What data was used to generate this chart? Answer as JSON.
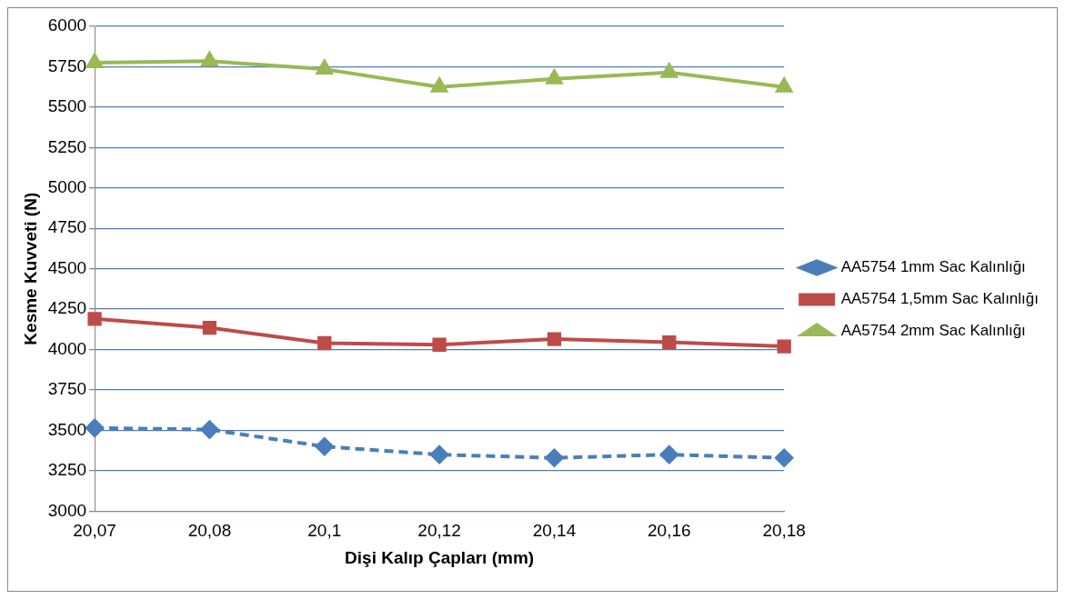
{
  "chart_data": {
    "type": "line",
    "xlabel": "Dişi Kalıp Çapları (mm)",
    "ylabel": "Kesme Kuvveti (N)",
    "categories": [
      "20,07",
      "20,08",
      "20,1",
      "20,12",
      "20,14",
      "20,16",
      "20,18"
    ],
    "ylim": [
      3000,
      6000
    ],
    "yticks": [
      3000,
      3250,
      3500,
      3750,
      4000,
      4250,
      4500,
      4750,
      5000,
      5250,
      5500,
      5750,
      6000
    ],
    "grid": "y",
    "legend": "right",
    "series": [
      {
        "name": "AA5754 1mm Sac Kalınlığı",
        "color": "#4a7ebb",
        "marker": "diamond",
        "line_style": "dashed",
        "values": [
          3515,
          3505,
          3400,
          3350,
          3330,
          3350,
          3330
        ]
      },
      {
        "name": "AA5754 1,5mm Sac Kalınlığı",
        "color": "#be4b48",
        "marker": "square",
        "line_style": "solid",
        "values": [
          4190,
          4135,
          4040,
          4030,
          4065,
          4045,
          4020
        ]
      },
      {
        "name": "AA5754 2mm Sac Kalınlığı",
        "color": "#98b954",
        "marker": "triangle",
        "line_style": "solid",
        "values": [
          5775,
          5785,
          5735,
          5625,
          5675,
          5715,
          5625
        ]
      }
    ]
  }
}
